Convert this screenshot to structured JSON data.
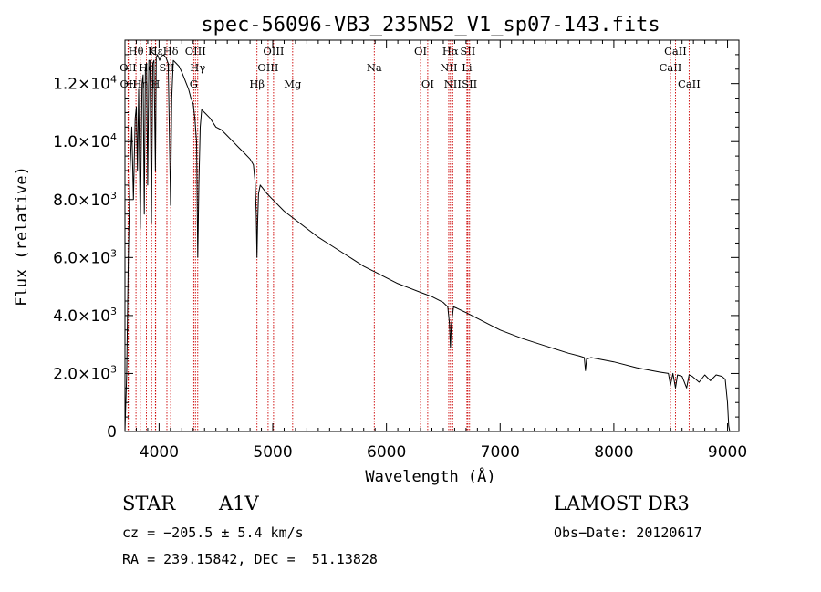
{
  "chart_data": {
    "type": "line",
    "title": "spec-56096-VB3_235N52_V1_sp07-143.fits",
    "xlabel": "Wavelength (Å)",
    "ylabel": "Flux (relative)",
    "xlim": [
      3700,
      9100
    ],
    "ylim": [
      0,
      13500
    ],
    "xticks": [
      4000,
      5000,
      6000,
      7000,
      8000,
      9000
    ],
    "xtick_labels": [
      "4000",
      "5000",
      "6000",
      "7000",
      "8000",
      "9000"
    ],
    "yticks": [
      0,
      2000,
      4000,
      6000,
      8000,
      10000,
      12000
    ],
    "ytick_labels": [
      {
        "mant": "0",
        "exp": ""
      },
      {
        "mant": "2.0×10",
        "exp": "3"
      },
      {
        "mant": "4.0×10",
        "exp": "3"
      },
      {
        "mant": "6.0×10",
        "exp": "3"
      },
      {
        "mant": "8.0×10",
        "exp": "3"
      },
      {
        "mant": "1.0×10",
        "exp": "4"
      },
      {
        "mant": "1.2×10",
        "exp": "4"
      }
    ],
    "series": [
      {
        "name": "spectrum",
        "x": [
          3700,
          3715,
          3730,
          3745,
          3760,
          3775,
          3790,
          3800,
          3810,
          3820,
          3835,
          3850,
          3860,
          3870,
          3880,
          3890,
          3900,
          3910,
          3920,
          3933,
          3945,
          3955,
          3968,
          3975,
          3985,
          3995,
          4005,
          4020,
          4040,
          4060,
          4080,
          4090,
          4101,
          4112,
          4125,
          4150,
          4175,
          4200,
          4220,
          4240,
          4260,
          4280,
          4300,
          4315,
          4330,
          4340,
          4350,
          4362,
          4375,
          4400,
          4450,
          4500,
          4550,
          4600,
          4650,
          4700,
          4750,
          4800,
          4830,
          4845,
          4855,
          4861,
          4867,
          4875,
          4890,
          4910,
          4950,
          5000,
          5100,
          5200,
          5300,
          5400,
          5500,
          5600,
          5700,
          5800,
          5900,
          6000,
          6100,
          6200,
          6300,
          6400,
          6500,
          6540,
          6555,
          6563,
          6571,
          6590,
          6620,
          6700,
          6800,
          6900,
          7000,
          7200,
          7400,
          7600,
          7700,
          7740,
          7750,
          7760,
          7800,
          8000,
          8200,
          8400,
          8480,
          8498,
          8520,
          8542,
          8560,
          8600,
          8640,
          8662,
          8690,
          8750,
          8800,
          8850,
          8900,
          8950,
          8980,
          9000,
          9010,
          9020
        ],
        "values": [
          0,
          2000,
          6000,
          9000,
          10500,
          8000,
          10800,
          11200,
          9000,
          11800,
          7000,
          12000,
          12300,
          7500,
          12500,
          12700,
          8500,
          12800,
          12800,
          7200,
          12700,
          12800,
          9000,
          12900,
          13000,
          12900,
          12800,
          12950,
          13000,
          12900,
          12700,
          10500,
          7800,
          11500,
          12800,
          12700,
          12600,
          12400,
          12200,
          12000,
          11800,
          11500,
          11300,
          10800,
          10000,
          6000,
          8500,
          10500,
          11100,
          11000,
          10800,
          10500,
          10400,
          10200,
          10000,
          9800,
          9600,
          9400,
          9200,
          8600,
          7500,
          6000,
          7200,
          8200,
          8500,
          8400,
          8200,
          8000,
          7600,
          7300,
          7000,
          6700,
          6450,
          6200,
          5950,
          5700,
          5500,
          5300,
          5100,
          4950,
          4800,
          4650,
          4450,
          4300,
          3700,
          2900,
          3700,
          4300,
          4250,
          4100,
          3900,
          3700,
          3500,
          3200,
          2950,
          2700,
          2600,
          2550,
          2100,
          2500,
          2550,
          2400,
          2200,
          2050,
          2000,
          1600,
          2000,
          1500,
          1950,
          1900,
          1500,
          1950,
          1900,
          1700,
          1950,
          1750,
          1950,
          1900,
          1800,
          1000,
          200,
          0
        ]
      }
    ],
    "lines": [
      {
        "name": "Hθ",
        "wl": 3797,
        "row": 0
      },
      {
        "name": "OII",
        "wl": 3727,
        "row": 1
      },
      {
        "name": "OII",
        "wl": 3730,
        "row": 2
      },
      {
        "name": "Hη",
        "wl": 3835,
        "row": 2
      },
      {
        "name": "He",
        "wl": 3889,
        "row": 1
      },
      {
        "name": "K",
        "wl": 3934,
        "row": 0
      },
      {
        "name": "H",
        "wl": 3968,
        "row": 2
      },
      {
        "name": "Hε",
        "wl": 3970,
        "row": 0
      },
      {
        "name": "SII",
        "wl": 4069,
        "row": 1
      },
      {
        "name": "Hδ",
        "wl": 4102,
        "row": 0
      },
      {
        "name": "OIII",
        "wl": 4320,
        "row": 0
      },
      {
        "name": "Hγ",
        "wl": 4340,
        "row": 1
      },
      {
        "name": "G",
        "wl": 4305,
        "row": 2
      },
      {
        "name": "Hβ",
        "wl": 4861,
        "row": 2
      },
      {
        "name": "OIII",
        "wl": 4959,
        "row": 1
      },
      {
        "name": "OIII",
        "wl": 5007,
        "row": 0
      },
      {
        "name": "Mg",
        "wl": 5175,
        "row": 2
      },
      {
        "name": "Na",
        "wl": 5893,
        "row": 1
      },
      {
        "name": "OI",
        "wl": 6300,
        "row": 0
      },
      {
        "name": "OI",
        "wl": 6363,
        "row": 2
      },
      {
        "name": "NII",
        "wl": 6548,
        "row": 1
      },
      {
        "name": "Hα",
        "wl": 6563,
        "row": 0
      },
      {
        "name": "NII",
        "wl": 6583,
        "row": 2
      },
      {
        "name": "Li",
        "wl": 6708,
        "row": 1
      },
      {
        "name": "SII",
        "wl": 6716,
        "row": 0
      },
      {
        "name": "SII",
        "wl": 6731,
        "row": 2
      },
      {
        "name": "CaII",
        "wl": 8498,
        "row": 1
      },
      {
        "name": "CaII",
        "wl": 8542,
        "row": 0
      },
      {
        "name": "CaII",
        "wl": 8662,
        "row": 2
      }
    ]
  },
  "info": {
    "class_label": "STAR",
    "subclass": "A1V",
    "survey": "LAMOST DR3",
    "cz_line": "cz = −205.5 ± 5.4 km/s",
    "obs_date": "Obs−Date: 20120617",
    "radec_line": "RA = 239.15842, DEC =  51.13828"
  }
}
